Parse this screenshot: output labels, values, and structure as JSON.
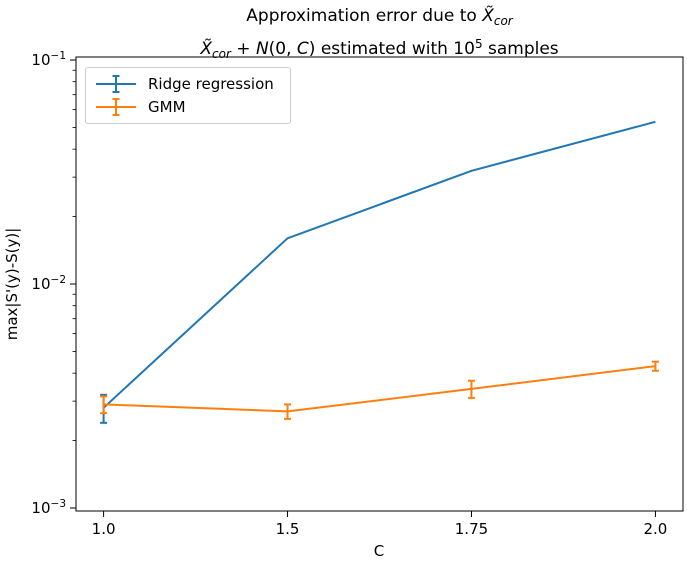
{
  "figure": {
    "title_line1": {
      "pre": "Approximation error due to ",
      "var": "X̃",
      "sub": "cor"
    },
    "title_line2": {
      "var": "X̃",
      "sub": "cor",
      "plus": " + ",
      "n": "N",
      "args": "(0, ",
      "c": "C",
      "close": ") estimated with 10",
      "exp": "5",
      "tail": " samples"
    }
  },
  "chart_data": {
    "type": "line",
    "title": "Approximation error due to X̃_cor — X̃_cor + N(0, C) estimated with 10^5 samples",
    "xlabel": "C",
    "ylabel": "max|S'(y)-S(y)|",
    "x_categories": [
      "1.0",
      "1.5",
      "1.75",
      "2.0"
    ],
    "x_tick_spacing": "even",
    "yscale": "log",
    "ylim": [
      0.001,
      0.1
    ],
    "y_ticks": [
      {
        "value": 0.1,
        "base": "10",
        "exp": "−1"
      },
      {
        "value": 0.01,
        "base": "10",
        "exp": "−2"
      },
      {
        "value": 0.001,
        "base": "10",
        "exp": "−3"
      }
    ],
    "grid": false,
    "legend_position": "upper left",
    "series": [
      {
        "name": "Ridge regression",
        "color": "#1f77b4",
        "values": [
          0.0028,
          0.016,
          0.032,
          0.053
        ],
        "yerr": [
          0.0004,
          0,
          0,
          0
        ]
      },
      {
        "name": "GMM",
        "color": "#ff7f0e",
        "values": [
          0.0029,
          0.0027,
          0.0034,
          0.0043
        ],
        "yerr": [
          0.00025,
          0.0002,
          0.0003,
          0.0002
        ]
      }
    ]
  }
}
